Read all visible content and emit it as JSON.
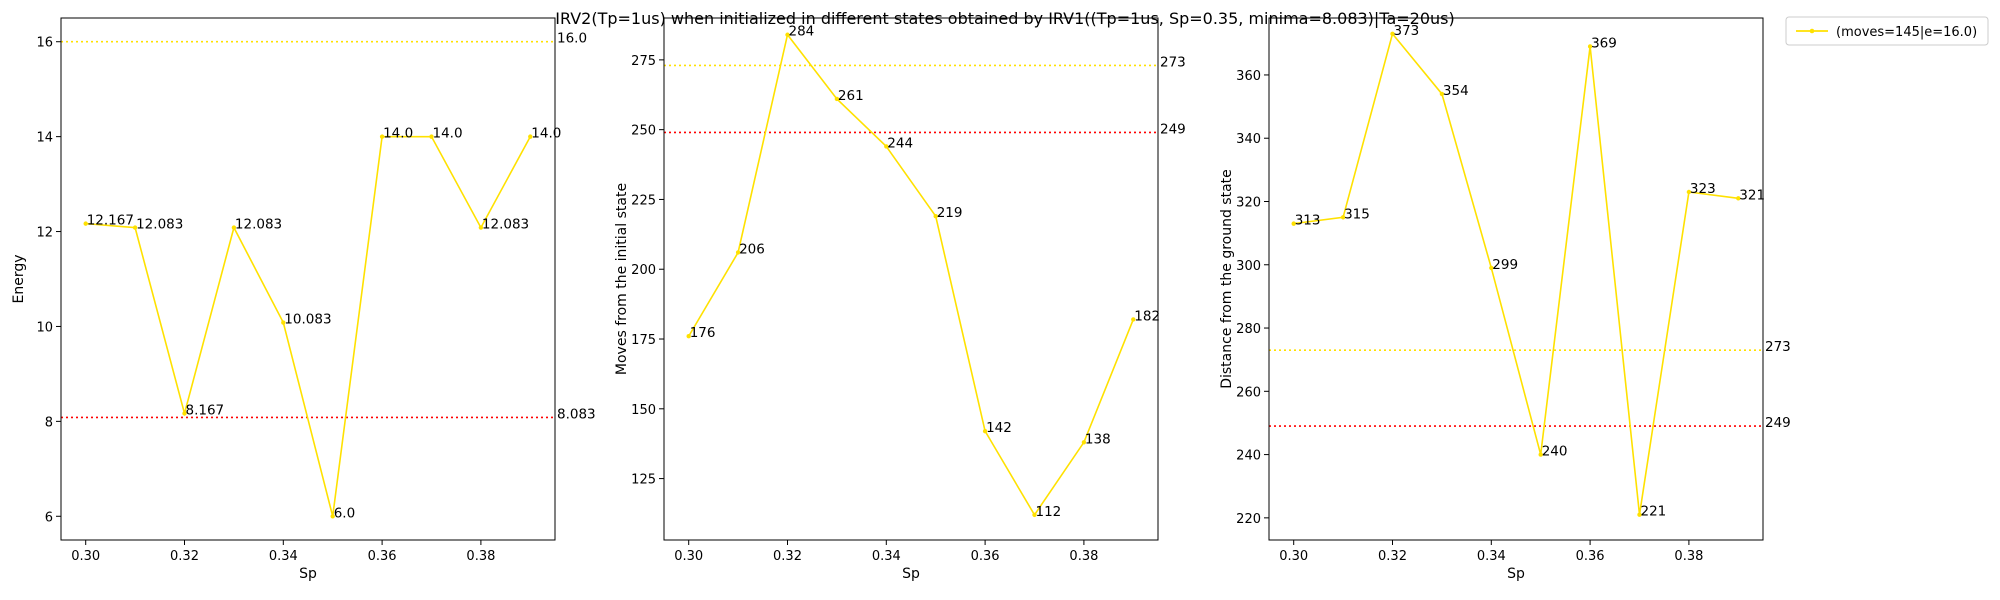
{
  "title": "IRV2(Tp=1us) when initialized in different states obtained by IRV1((Tp=1us, Sp=0.35, minima=8.083)|Ta=20us)",
  "legend": {
    "label": "(moves=145|e=16.0)",
    "placement": "outside-top-right"
  },
  "colors": {
    "series": "#FFE100",
    "ref_yellow": "#FFE100",
    "ref_red": "#FF0000"
  },
  "chart_data": [
    {
      "type": "line",
      "xlabel": "Sp",
      "ylabel": "Energy",
      "x": [
        0.3,
        0.31,
        0.32,
        0.33,
        0.34,
        0.35,
        0.36,
        0.37,
        0.38,
        0.39
      ],
      "xlim": [
        0.295,
        0.395
      ],
      "ylim": [
        5.5,
        16.5
      ],
      "xticks": [
        0.3,
        0.32,
        0.34,
        0.36,
        0.38
      ],
      "xtick_labels": [
        "0.30",
        "0.32",
        "0.34",
        "0.36",
        "0.38"
      ],
      "yticks": [
        6,
        8,
        10,
        12,
        14,
        16
      ],
      "ytick_labels": [
        "6",
        "8",
        "10",
        "12",
        "14",
        "16"
      ],
      "series": [
        {
          "values": [
            12.167,
            12.083,
            8.167,
            12.083,
            10.083,
            6.0,
            14.0,
            14.0,
            12.083,
            14.0
          ],
          "labels": [
            "12.167",
            "12.083",
            "8.167",
            "12.083",
            "10.083",
            "6.0",
            "14.0",
            "14.0",
            "12.083",
            "14.0"
          ]
        }
      ],
      "reference_lines": [
        {
          "y": 16.0,
          "label": "16.0",
          "color": "yellow"
        },
        {
          "y": 8.083,
          "label": "8.083",
          "color": "red"
        }
      ]
    },
    {
      "type": "line",
      "xlabel": "Sp",
      "ylabel": "Moves from the initial state",
      "x": [
        0.3,
        0.31,
        0.32,
        0.33,
        0.34,
        0.35,
        0.36,
        0.37,
        0.38,
        0.39
      ],
      "xlim": [
        0.295,
        0.395
      ],
      "ylim": [
        103,
        290
      ],
      "xticks": [
        0.3,
        0.32,
        0.34,
        0.36,
        0.38
      ],
      "xtick_labels": [
        "0.30",
        "0.32",
        "0.34",
        "0.36",
        "0.38"
      ],
      "yticks": [
        125,
        150,
        175,
        200,
        225,
        250,
        275
      ],
      "ytick_labels": [
        "125",
        "150",
        "175",
        "200",
        "225",
        "250",
        "275"
      ],
      "series": [
        {
          "values": [
            176,
            206,
            284,
            261,
            244,
            219,
            142,
            112,
            138,
            182
          ],
          "labels": [
            "176",
            "206",
            "284",
            "261",
            "244",
            "219",
            "142",
            "112",
            "138",
            "182"
          ]
        }
      ],
      "reference_lines": [
        {
          "y": 273,
          "label": "273",
          "color": "yellow"
        },
        {
          "y": 249,
          "label": "249",
          "color": "red"
        }
      ]
    },
    {
      "type": "line",
      "xlabel": "Sp",
      "ylabel": "Distance from the ground state",
      "x": [
        0.3,
        0.31,
        0.32,
        0.33,
        0.34,
        0.35,
        0.36,
        0.37,
        0.38,
        0.39
      ],
      "xlim": [
        0.295,
        0.395
      ],
      "ylim": [
        213,
        378
      ],
      "xticks": [
        0.3,
        0.32,
        0.34,
        0.36,
        0.38
      ],
      "xtick_labels": [
        "0.30",
        "0.32",
        "0.34",
        "0.36",
        "0.38"
      ],
      "yticks": [
        220,
        240,
        260,
        280,
        300,
        320,
        340,
        360
      ],
      "ytick_labels": [
        "220",
        "240",
        "260",
        "280",
        "300",
        "320",
        "340",
        "360"
      ],
      "series": [
        {
          "values": [
            313,
            315,
            373,
            354,
            299,
            240,
            369,
            221,
            323,
            321
          ],
          "labels": [
            "313",
            "315",
            "373",
            "354",
            "299",
            "240",
            "369",
            "221",
            "323",
            "321"
          ]
        }
      ],
      "reference_lines": [
        {
          "y": 273,
          "label": "273",
          "color": "yellow"
        },
        {
          "y": 249,
          "label": "249",
          "color": "red"
        }
      ]
    }
  ]
}
